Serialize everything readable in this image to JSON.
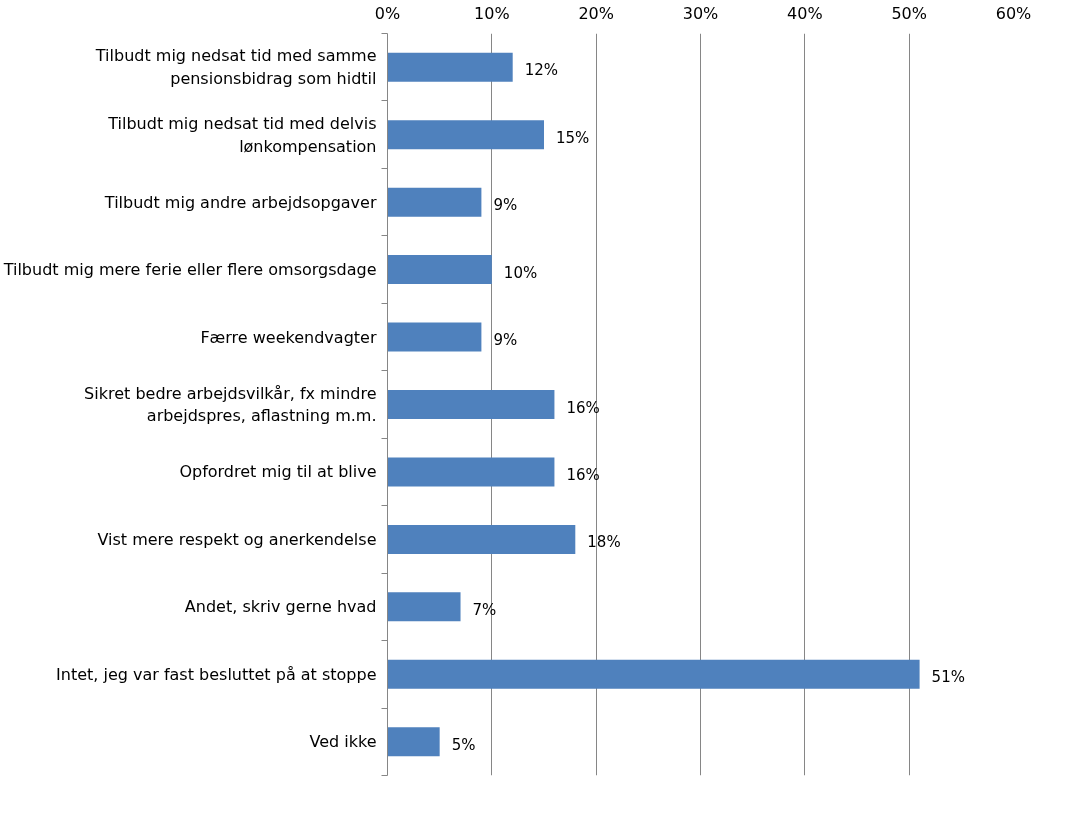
{
  "chart_data": {
    "type": "bar",
    "orientation": "horizontal",
    "categories": [
      "Tilbudt mig nedsat tid med samme pensionsbidrag som hidtil",
      "Tilbudt mig nedsat tid med delvis lønkompensation",
      "Tilbudt mig andre arbejdsopgaver",
      "Tilbudt mig mere ferie eller flere omsorgsdage",
      "Færre weekendvagter",
      "Sikret bedre arbejdsvilkår, fx mindre arbejdspres, aflastning m.m.",
      "Opfordret mig til at blive",
      "Vist mere respekt og anerkendelse",
      "Andet, skriv gerne hvad",
      "Intet, jeg var fast besluttet på at stoppe",
      "Ved ikke"
    ],
    "values": [
      12,
      15,
      9,
      10,
      9,
      16,
      16,
      18,
      7,
      51,
      5
    ],
    "color": "#4f81bd",
    "xlim": [
      0,
      60
    ],
    "xticks": [
      {
        "value": 0,
        "label": "0%"
      },
      {
        "value": 10,
        "label": "10%"
      },
      {
        "value": 20,
        "label": "20%"
      },
      {
        "value": 30,
        "label": "30%"
      },
      {
        "value": 40,
        "label": "40%"
      },
      {
        "value": 50,
        "label": "50%"
      },
      {
        "value": 60,
        "label": "60%"
      }
    ],
    "value_labels": [
      "12%",
      "15%",
      "9%",
      "10%",
      "9%",
      "16%",
      "16%",
      "18%",
      "7%",
      "51%",
      "5%"
    ],
    "grid": "x"
  }
}
